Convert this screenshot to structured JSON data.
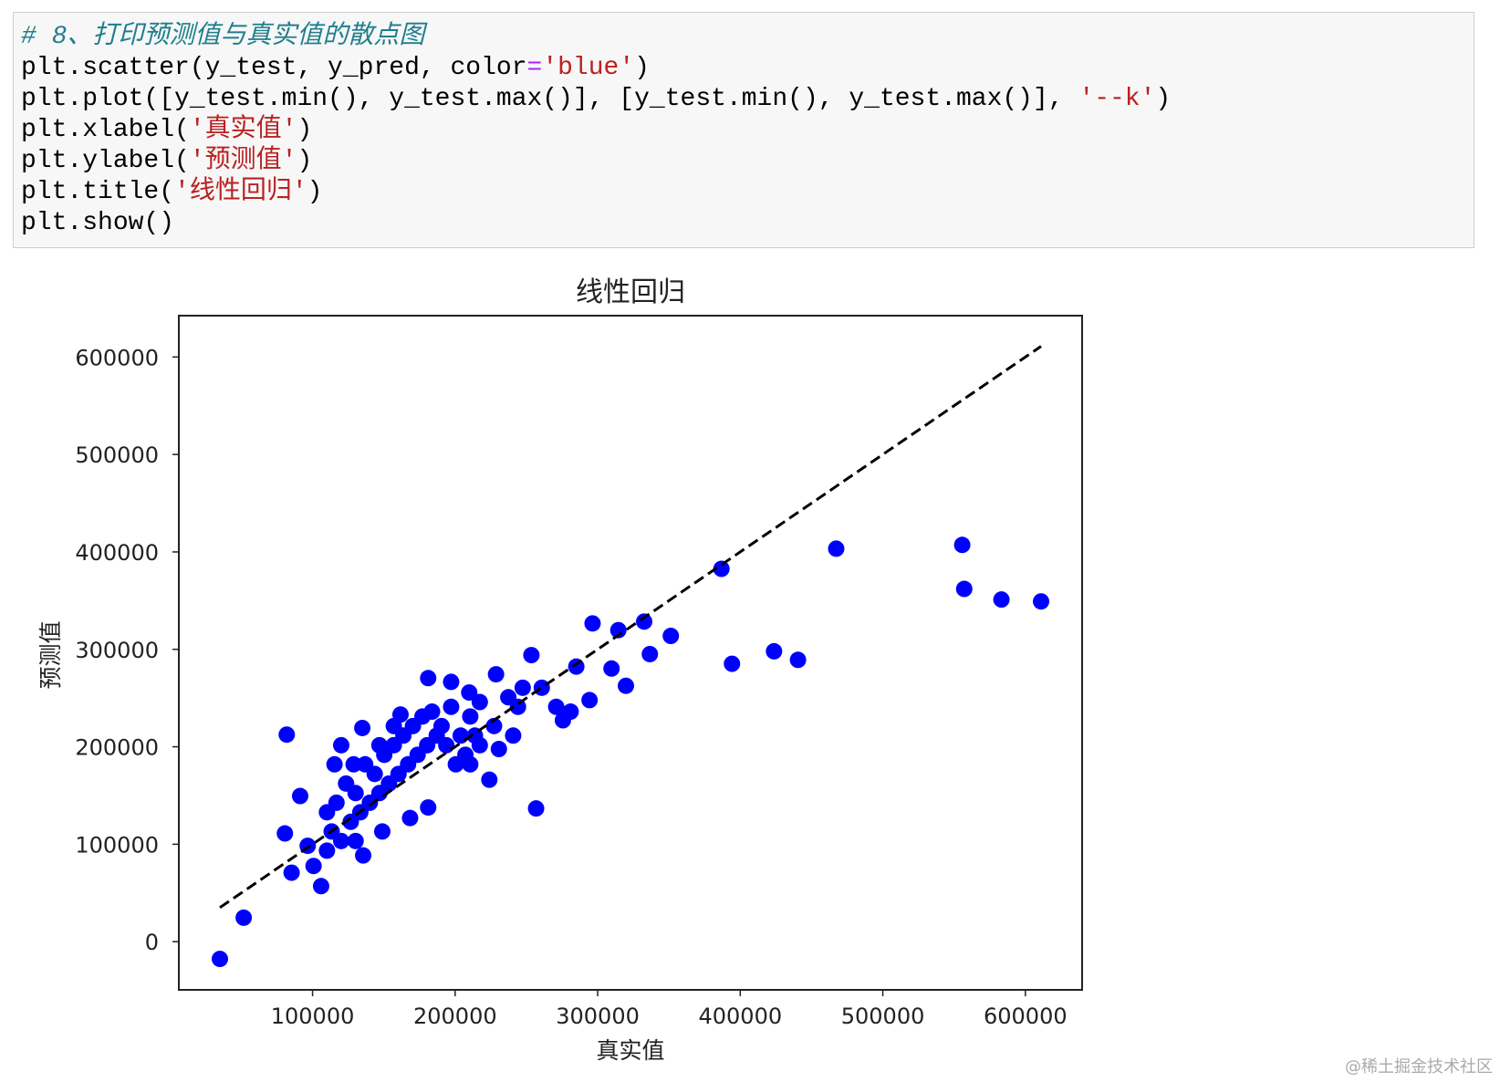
{
  "code": {
    "lines": [
      [
        {
          "text": "# 8、打印预测值与真实值的散点图",
          "color": "#1f7f8c",
          "italic": true
        }
      ],
      [
        {
          "text": "plt.scatter(y_test, y_pred, color",
          "color": "#000000"
        },
        {
          "text": "=",
          "color": "#aa22ff"
        },
        {
          "text": "'blue'",
          "color": "#ba2121"
        },
        {
          "text": ")",
          "color": "#000000"
        }
      ],
      [
        {
          "text": "plt.plot([y_test.min(), y_test.max()], [y_test.min(), y_test.max()], ",
          "color": "#000000"
        },
        {
          "text": "'--k'",
          "color": "#ba2121"
        },
        {
          "text": ")",
          "color": "#000000"
        }
      ],
      [
        {
          "text": "plt.xlabel(",
          "color": "#000000"
        },
        {
          "text": "'真实值'",
          "color": "#ba2121"
        },
        {
          "text": ")",
          "color": "#000000"
        }
      ],
      [
        {
          "text": "plt.ylabel(",
          "color": "#000000"
        },
        {
          "text": "'预测值'",
          "color": "#ba2121"
        },
        {
          "text": ")",
          "color": "#000000"
        }
      ],
      [
        {
          "text": "plt.title(",
          "color": "#000000"
        },
        {
          "text": "'线性回归'",
          "color": "#ba2121"
        },
        {
          "text": ")",
          "color": "#000000"
        }
      ],
      [
        {
          "text": "plt.show()",
          "color": "#000000"
        }
      ]
    ]
  },
  "chart_data": {
    "type": "scatter",
    "title": "线性回归",
    "xlabel": "真实值",
    "ylabel": "预测值",
    "color": "#0000ff",
    "x": [
      35000,
      51700,
      81900,
      467300,
      555700,
      557100,
      583200,
      611000,
      386800,
      394200,
      423700,
      440500,
      351300,
      296400,
      332600,
      314500,
      336600,
      319800,
      309700,
      294300,
      285000,
      275600,
      256800,
      253500,
      224000,
      230700,
      240700,
      181100,
      197200,
      181100,
      228700,
      209900,
      161700,
      134900,
      91300,
      80600,
      85300,
      106000,
      100700,
      115400,
      135500,
      148900,
      168400,
      116800,
      123500,
      130200,
      136900,
      143600,
      150300,
      157000,
      163700,
      170400,
      177100,
      183800,
      190500,
      197200,
      203900,
      210600,
      217300,
      126800,
      133500,
      140200,
      146900,
      153600,
      160300,
      167000,
      173700,
      180400,
      187100,
      193800,
      200500,
      207200,
      213900,
      113400,
      120100,
      110100,
      96600,
      128800,
      110100,
      146900,
      157000,
      237300,
      247400,
      260800,
      270900,
      281000,
      244100,
      227300,
      217300,
      210600,
      120100,
      130200
    ],
    "values": [
      -17700,
      24600,
      212500,
      403300,
      407200,
      362000,
      351100,
      349200,
      382600,
      285200,
      298000,
      289200,
      313800,
      326600,
      328500,
      319700,
      295100,
      262600,
      280300,
      247900,
      282300,
      227200,
      136700,
      294100,
      166200,
      197700,
      211500,
      270500,
      266600,
      137700,
      274400,
      255700,
      233100,
      219300,
      149500,
      111100,
      70800,
      57000,
      77700,
      182000,
      88500,
      113100,
      126900,
      142600,
      162300,
      152500,
      182000,
      172100,
      191800,
      201600,
      211500,
      221300,
      231100,
      236100,
      221300,
      241000,
      211500,
      231100,
      245900,
      123000,
      132800,
      142600,
      152500,
      162300,
      172100,
      182000,
      191800,
      201600,
      211500,
      201600,
      182000,
      191800,
      211500,
      113100,
      103300,
      93400,
      98400,
      182000,
      132800,
      201600,
      221300,
      250800,
      260600,
      260600,
      241000,
      236100,
      241000,
      221300,
      201600,
      182000,
      201600,
      103300
    ],
    "reference_line": {
      "x": [
        35000,
        611000
      ],
      "y": [
        35000,
        611000
      ],
      "color": "#000000",
      "style": "dashed"
    },
    "xlim": [
      6200,
      639800
    ],
    "ylim": [
      -49450,
      642450
    ],
    "xticks": [
      100000,
      200000,
      300000,
      400000,
      500000,
      600000
    ],
    "yticks": [
      0,
      100000,
      200000,
      300000,
      400000,
      500000,
      600000
    ],
    "grid": false
  },
  "watermark": "@稀土掘金技术社区"
}
